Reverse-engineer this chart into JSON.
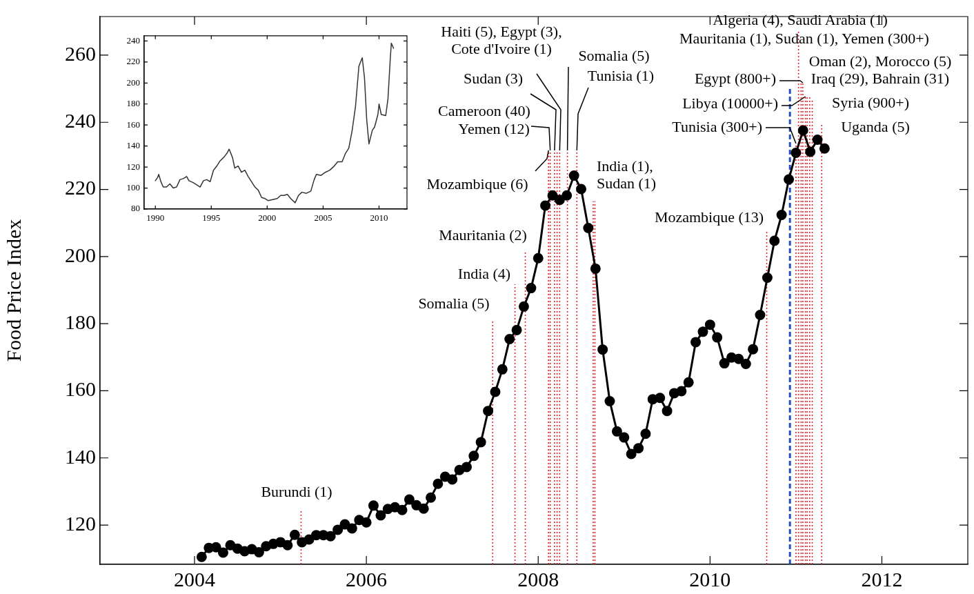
{
  "chart_data": [
    {
      "type": "line",
      "ylabel": "Food Price Index",
      "marker": "circle",
      "xlim": [
        2002.9,
        2013
      ],
      "xticks": [
        2004,
        2006,
        2008,
        2010,
        2012
      ],
      "ylim": [
        108.3,
        271.5
      ],
      "yticks": [
        120,
        140,
        160,
        180,
        200,
        220,
        240,
        260
      ],
      "x": [
        2004.083,
        2004.167,
        2004.25,
        2004.333,
        2004.417,
        2004.5,
        2004.583,
        2004.667,
        2004.75,
        2004.833,
        2004.917,
        2005,
        2005.083,
        2005.167,
        2005.25,
        2005.333,
        2005.417,
        2005.5,
        2005.583,
        2005.667,
        2005.75,
        2005.833,
        2005.917,
        2006,
        2006.083,
        2006.167,
        2006.25,
        2006.333,
        2006.417,
        2006.5,
        2006.583,
        2006.667,
        2006.75,
        2006.833,
        2006.917,
        2007,
        2007.083,
        2007.167,
        2007.25,
        2007.333,
        2007.417,
        2007.5,
        2007.583,
        2007.667,
        2007.75,
        2007.833,
        2007.917,
        2008,
        2008.083,
        2008.167,
        2008.25,
        2008.333,
        2008.417,
        2008.5,
        2008.583,
        2008.667,
        2008.75,
        2008.833,
        2008.917,
        2009,
        2009.083,
        2009.167,
        2009.25,
        2009.333,
        2009.417,
        2009.5,
        2009.583,
        2009.667,
        2009.75,
        2009.833,
        2009.917,
        2010,
        2010.083,
        2010.167,
        2010.25,
        2010.333,
        2010.417,
        2010.5,
        2010.583,
        2010.667,
        2010.75,
        2010.833,
        2010.917,
        2011,
        2011.083,
        2011.167,
        2011.25,
        2011.333
      ],
      "series": [
        {
          "color": "#000000",
          "values": [
            110.5,
            113.2,
            113.4,
            111.8,
            114.0,
            113.0,
            112.2,
            112.8,
            111.9,
            113.7,
            114.4,
            114.9,
            114.0,
            117.1,
            114.9,
            115.7,
            117.0,
            117.0,
            116.7,
            118.6,
            120.2,
            119.0,
            121.5,
            120.8,
            125.8,
            122.9,
            124.8,
            125.3,
            124.5,
            127.6,
            125.9,
            124.9,
            128.2,
            132.3,
            134.4,
            133.6,
            136.4,
            137.3,
            140.6,
            144.7,
            154.0,
            159.7,
            166.4,
            175.4,
            178.1,
            185.1,
            190.6,
            199.5,
            215.2,
            218.2,
            216.9,
            218.2,
            224.1,
            220.1,
            208.5,
            196.4,
            172.3,
            156.9,
            147.9,
            146.1,
            141.2,
            142.9,
            147.2,
            157.5,
            157.9,
            154.0,
            159.3,
            159.9,
            162.5,
            174.5,
            177.6,
            179.7,
            175.9,
            168.2,
            169.9,
            169.5,
            168.0,
            172.4,
            182.6,
            193.7,
            204.7,
            212.4,
            223.0,
            230.9,
            237.6,
            231.2,
            234.8,
            232.2
          ]
        }
      ],
      "ref_lines": [
        {
          "axis": "x",
          "value": 2005.24,
          "label": "Burundi (1)",
          "color": "#e8202a",
          "line_style": "dotted"
        },
        {
          "axis": "x",
          "value": 2007.47,
          "label": "Somalia (5)",
          "color": "#e8202a",
          "line_style": "dotted"
        },
        {
          "axis": "x",
          "value": 2007.73,
          "label": "India (4)",
          "color": "#e8202a",
          "line_style": "dotted"
        },
        {
          "axis": "x",
          "value": 2007.85,
          "label": "Mauritania (2)",
          "color": "#e8202a",
          "line_style": "dotted"
        },
        {
          "axis": "x",
          "value": 2008.12,
          "label": "Mozambique (6)",
          "color": "#e8202a",
          "line_style": "dotted"
        },
        {
          "axis": "x",
          "value": 2008.14,
          "label": "Yemen (12)",
          "color": "#e8202a",
          "line_style": "dotted"
        },
        {
          "axis": "x",
          "value": 2008.19,
          "label": "Cameroon (40)",
          "color": "#e8202a",
          "line_style": "dotted"
        },
        {
          "axis": "x",
          "value": 2008.25,
          "label": "Sudan (3)",
          "color": "#e8202a",
          "line_style": "dotted"
        },
        {
          "axis": "x",
          "value": 2008.22,
          "label": "Haiti (5), Egypt (3),\nCote d'Ivoire (1)",
          "color": "#e8202a",
          "line_style": "dotted"
        },
        {
          "axis": "x",
          "value": 2008.34,
          "label": "Somalia (5)",
          "color": "#e8202a",
          "line_style": "dotted"
        },
        {
          "axis": "x",
          "value": 2008.45,
          "label": "Tunisia (1)",
          "color": "#e8202a",
          "line_style": "dotted"
        },
        {
          "axis": "x",
          "value": 2008.64,
          "label": "India (1),\nSudan (1)",
          "color": "#e8202a",
          "line_style": "dotted"
        },
        {
          "axis": "x",
          "value": 2008.66,
          "color": "#e8202a",
          "line_style": "dotted"
        },
        {
          "axis": "x",
          "value": 2010.66,
          "label": "Mozambique (13)",
          "color": "#e8202a",
          "line_style": "dotted"
        },
        {
          "axis": "x",
          "value": 2010.93,
          "color": "#2050c0",
          "line_style": "dashed"
        },
        {
          "axis": "x",
          "value": 2011.0,
          "label": "Tunisia (300+)",
          "color": "#e8202a",
          "line_style": "dotted"
        },
        {
          "axis": "x",
          "value": 2011.03,
          "label": "Algeria (4), Saudi Arabia (1)",
          "color": "#e8202a",
          "line_style": "dotted"
        },
        {
          "axis": "x",
          "value": 2011.06,
          "label": "Mauritania (1), Sudan (1), Yemen (300+)",
          "color": "#e8202a",
          "line_style": "dotted"
        },
        {
          "axis": "x",
          "value": 2011.08,
          "label": "Egypt (800+)",
          "color": "#e8202a",
          "line_style": "dotted"
        },
        {
          "axis": "x",
          "value": 2011.11,
          "label": "Libya (10000+)",
          "color": "#e8202a",
          "line_style": "dotted"
        },
        {
          "axis": "x",
          "value": 2011.13,
          "label": "Oman (2), Morocco (5)",
          "color": "#e8202a",
          "line_style": "dotted"
        },
        {
          "axis": "x",
          "value": 2011.16,
          "label": "Iraq (29), Bahrain (31)",
          "color": "#e8202a",
          "line_style": "dotted"
        },
        {
          "axis": "x",
          "value": 2011.19,
          "label": "Syria (900+)",
          "color": "#e8202a",
          "line_style": "dotted"
        },
        {
          "axis": "x",
          "value": 2011.3,
          "label": "Uganda (5)",
          "color": "#e8202a",
          "line_style": "dotted"
        }
      ]
    },
    {
      "type": "line",
      "xlim": [
        1989,
        2012.5
      ],
      "xticks": [
        1990,
        1995,
        2000,
        2005,
        2010
      ],
      "ylim": [
        80,
        245
      ],
      "yticks": [
        80,
        100,
        120,
        140,
        160,
        180,
        200,
        220,
        240
      ],
      "x": [
        1990.0,
        1990.2,
        1990.3,
        1990.5,
        1990.7,
        1991.0,
        1991.3,
        1991.6,
        1991.9,
        1992.2,
        1992.5,
        1992.8,
        1993.0,
        1993.4,
        1993.7,
        1994.0,
        1994.3,
        1994.6,
        1994.9,
        1995.2,
        1995.5,
        1995.8,
        1996.1,
        1996.4,
        1996.6,
        1996.9,
        1997.1,
        1997.4,
        1997.7,
        1998.0,
        1998.3,
        1998.6,
        1998.9,
        1999.2,
        1999.5,
        1999.8,
        2000.1,
        2000.5,
        2000.9,
        2001.2,
        2001.5,
        2001.8,
        2002.1,
        2002.5,
        2002.8,
        2003.1,
        2003.5,
        2003.9,
        2004.2,
        2004.4,
        2004.8,
        2005.2,
        2005.6,
        2006.0,
        2006.3,
        2006.7,
        2007.0,
        2007.3,
        2007.6,
        2007.9,
        2008.2,
        2008.5,
        2008.7,
        2008.9,
        2009.1,
        2009.4,
        2009.6,
        2009.9,
        2010.0,
        2010.2,
        2010.6,
        2010.8,
        2011.0,
        2011.1,
        2011.3
      ],
      "series": [
        {
          "color": "#333333",
          "values": [
            107,
            110,
            113,
            106,
            101,
            101,
            104,
            100,
            101,
            108,
            109,
            111,
            107,
            105,
            103,
            101,
            107,
            108,
            106,
            117,
            121,
            126,
            129,
            133,
            137,
            129,
            119,
            121,
            115,
            117,
            111,
            106,
            101,
            98,
            91,
            90,
            88,
            89,
            90,
            93,
            93,
            94,
            90,
            86,
            93,
            96,
            95,
            97,
            108,
            113,
            112,
            115,
            117,
            121,
            125,
            125,
            133,
            138,
            155,
            178,
            216,
            224,
            205,
            165,
            142,
            155,
            158,
            170,
            180,
            170,
            169,
            185,
            222,
            238,
            233
          ]
        }
      ]
    }
  ]
}
